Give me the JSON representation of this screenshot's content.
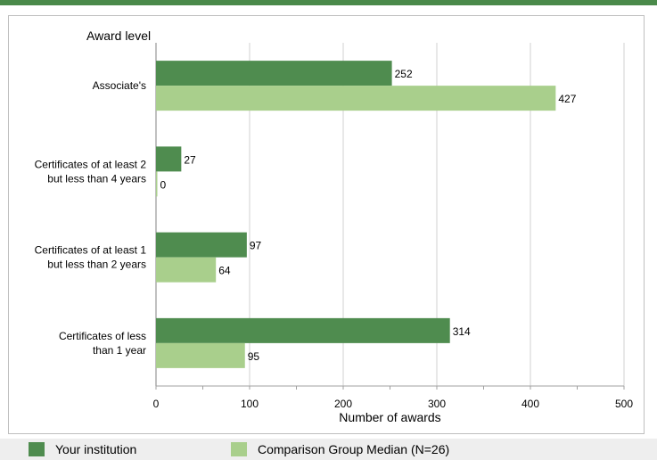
{
  "colors": {
    "topbar": "#4a8a4a",
    "series1": "#4f8c4f",
    "series2": "#a9cf8c",
    "grid": "#d0d0d0"
  },
  "chart_data": {
    "type": "bar",
    "orientation": "horizontal",
    "ylabel": "Award level",
    "xlabel": "Number of awards",
    "xlim": [
      0,
      500
    ],
    "xticks": [
      "0",
      "100",
      "200",
      "300",
      "400",
      "500"
    ],
    "categories": [
      [
        "Associate's"
      ],
      [
        "Certificates of at least 2",
        "but less than 4 years"
      ],
      [
        "Certificates of at least 1",
        "but  less than 2 years"
      ],
      [
        "Certificates of less",
        "than 1 year"
      ]
    ],
    "series": [
      {
        "name": "Your institution",
        "values": [
          252,
          27,
          97,
          314
        ]
      },
      {
        "name": "Comparison Group Median (N=26)",
        "values": [
          427,
          0,
          64,
          95
        ]
      }
    ],
    "grid": true,
    "legend_position": "bottom"
  }
}
